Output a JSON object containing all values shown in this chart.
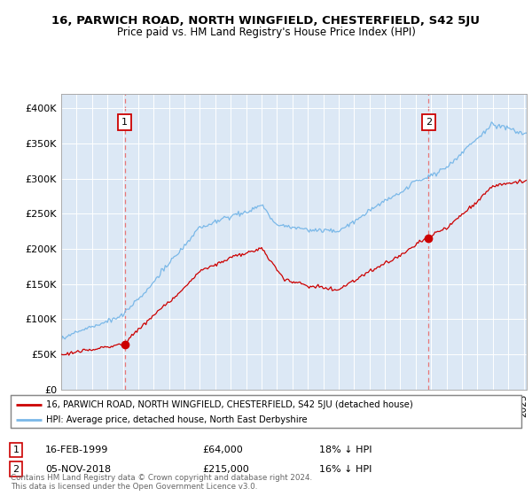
{
  "title": "16, PARWICH ROAD, NORTH WINGFIELD, CHESTERFIELD, S42 5JU",
  "subtitle": "Price paid vs. HM Land Registry's House Price Index (HPI)",
  "ylim": [
    0,
    420000
  ],
  "yticks": [
    0,
    50000,
    100000,
    150000,
    200000,
    250000,
    300000,
    350000,
    400000
  ],
  "ytick_labels": [
    "£0",
    "£50K",
    "£100K",
    "£150K",
    "£200K",
    "£250K",
    "£300K",
    "£350K",
    "£400K"
  ],
  "sale1_x": 1999.12,
  "sale1_y": 64000,
  "sale2_x": 2018.84,
  "sale2_y": 215000,
  "sale1_date": "16-FEB-1999",
  "sale1_price": "£64,000",
  "sale1_hpi": "18% ↓ HPI",
  "sale2_date": "05-NOV-2018",
  "sale2_price": "£215,000",
  "sale2_hpi": "16% ↓ HPI",
  "hpi_color": "#7ab8e8",
  "price_color": "#cc0000",
  "vline_color": "#e87878",
  "bg_color": "#dce8f5",
  "legend_entry1": "16, PARWICH ROAD, NORTH WINGFIELD, CHESTERFIELD, S42 5JU (detached house)",
  "legend_entry2": "HPI: Average price, detached house, North East Derbyshire",
  "footer": "Contains HM Land Registry data © Crown copyright and database right 2024.\nThis data is licensed under the Open Government Licence v3.0.",
  "xlim_start": 1995.4,
  "xlim_end": 2025.2,
  "hpi_seed": 17,
  "price_seed": 99
}
